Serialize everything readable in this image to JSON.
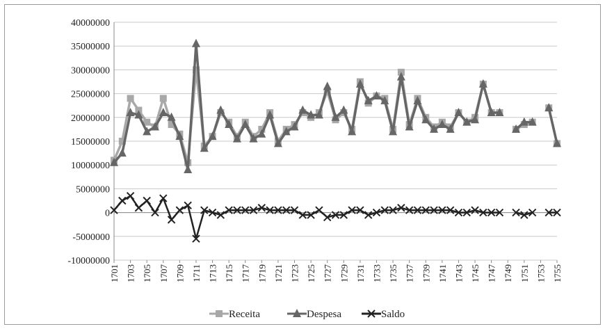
{
  "chart_data": {
    "type": "line",
    "title": "",
    "xlabel": "",
    "ylabel": "",
    "ylim": [
      -10000000,
      40000000
    ],
    "y_ticks": [
      "40000000",
      "35000000",
      "30000000",
      "25000000",
      "20000000",
      "15000000",
      "10000000",
      "5000000",
      "0",
      "-5000000",
      "-10000000"
    ],
    "x_ticks": [
      "1701",
      "1703",
      "1705",
      "1707",
      "1709",
      "1711",
      "1713",
      "1715",
      "1717",
      "1719",
      "1721",
      "1723",
      "1725",
      "1727",
      "1729",
      "1731",
      "1733",
      "1735",
      "1737",
      "1739",
      "1741",
      "1743",
      "1745",
      "1747",
      "1749",
      "1751",
      "1753",
      "1755"
    ],
    "years_first": 1701,
    "years_last": 1755,
    "grid": "horizontal",
    "legend_position": "bottom",
    "series": [
      {
        "name": "Receita",
        "color": "#a8a8a8",
        "marker": "square",
        "values": [
          11000000,
          15000000,
          24000000,
          21500000,
          19000000,
          18000000,
          24000000,
          18500000,
          16500000,
          10500000,
          30000000,
          14000000,
          16000000,
          21000000,
          19000000,
          16000000,
          19000000,
          16000000,
          17500000,
          21000000,
          15000000,
          17500000,
          18500000,
          21000000,
          20000000,
          21000000,
          25500000,
          19500000,
          21000000,
          17500000,
          27500000,
          23000000,
          24500000,
          24000000,
          17500000,
          29500000,
          18500000,
          24000000,
          20000000,
          18000000,
          19000000,
          18000000,
          21000000,
          19000000,
          20000000,
          27000000,
          21000000,
          21000000,
          null,
          17500000,
          18500000,
          19000000,
          null,
          22000000,
          14500000
        ]
      },
      {
        "name": "Despesa",
        "color": "#666666",
        "marker": "triangle",
        "values": [
          10500000,
          12500000,
          21000000,
          20500000,
          17000000,
          18000000,
          21000000,
          20000000,
          16000000,
          9000000,
          35500000,
          13500000,
          16000000,
          21500000,
          18500000,
          15500000,
          18500000,
          15500000,
          16500000,
          20500000,
          14500000,
          17000000,
          18000000,
          21500000,
          20500000,
          20500000,
          26500000,
          20000000,
          21500000,
          17000000,
          27000000,
          23500000,
          24500000,
          23500000,
          17000000,
          28500000,
          18000000,
          23500000,
          19500000,
          17500000,
          18500000,
          17500000,
          21000000,
          19000000,
          19500000,
          27000000,
          21000000,
          21000000,
          null,
          17500000,
          19000000,
          19000000,
          null,
          22000000,
          14500000
        ]
      },
      {
        "name": "Saldo",
        "color": "#222222",
        "marker": "x",
        "values": [
          500000,
          2500000,
          3500000,
          1000000,
          2500000,
          0,
          3000000,
          -1500000,
          500000,
          1500000,
          -5500000,
          500000,
          0,
          -500000,
          500000,
          500000,
          500000,
          500000,
          1000000,
          500000,
          500000,
          500000,
          500000,
          -500000,
          -500000,
          500000,
          -1000000,
          -500000,
          -500000,
          500000,
          500000,
          -500000,
          0,
          500000,
          500000,
          1000000,
          500000,
          500000,
          500000,
          500000,
          500000,
          500000,
          0,
          0,
          500000,
          0,
          0,
          0,
          null,
          0,
          -500000,
          0,
          null,
          0,
          0
        ]
      }
    ]
  }
}
